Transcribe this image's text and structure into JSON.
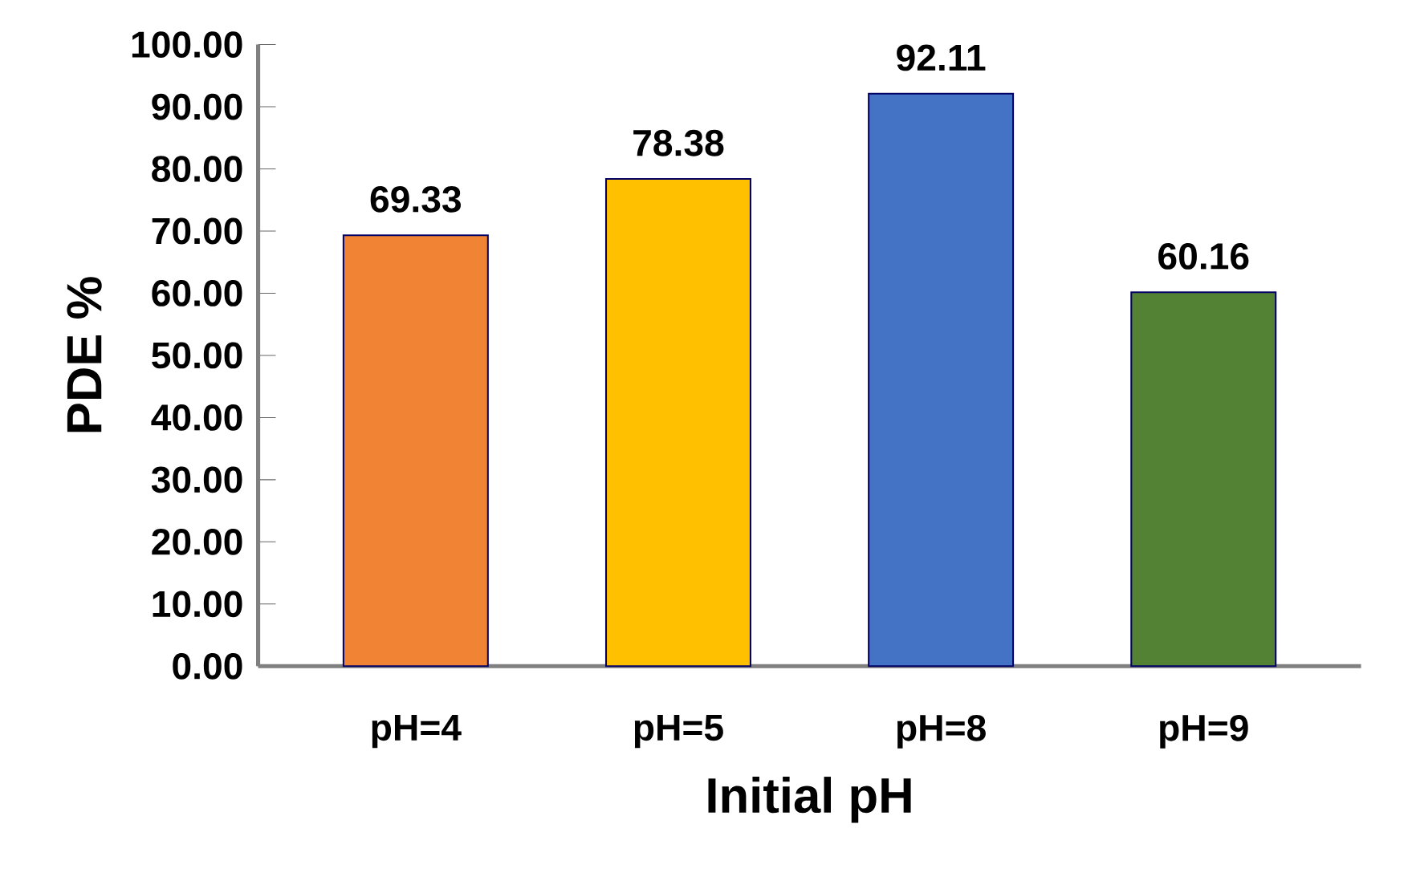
{
  "chart_data": {
    "type": "bar",
    "xlabel": "Initial pH",
    "ylabel": "PDE %",
    "categories": [
      "pH=4",
      "pH=5",
      "pH=8",
      "pH=9"
    ],
    "values": [
      69.33,
      78.38,
      92.11,
      60.16
    ],
    "colors": [
      "#f08434",
      "#ffc000",
      "#4472c4",
      "#548235"
    ],
    "ylim": [
      0,
      100
    ],
    "yticks": [
      {
        "value": 0,
        "label": "0.00"
      },
      {
        "value": 10,
        "label": "10.00"
      },
      {
        "value": 20,
        "label": "20.00"
      },
      {
        "value": 30,
        "label": "30.00"
      },
      {
        "value": 40,
        "label": "40.00"
      },
      {
        "value": 50,
        "label": "50.00"
      },
      {
        "value": 60,
        "label": "60.00"
      },
      {
        "value": 70,
        "label": "70.00"
      },
      {
        "value": 80,
        "label": "80.00"
      },
      {
        "value": 90,
        "label": "90.00"
      },
      {
        "value": 100,
        "label": "100.00"
      }
    ],
    "data_labels": true
  }
}
